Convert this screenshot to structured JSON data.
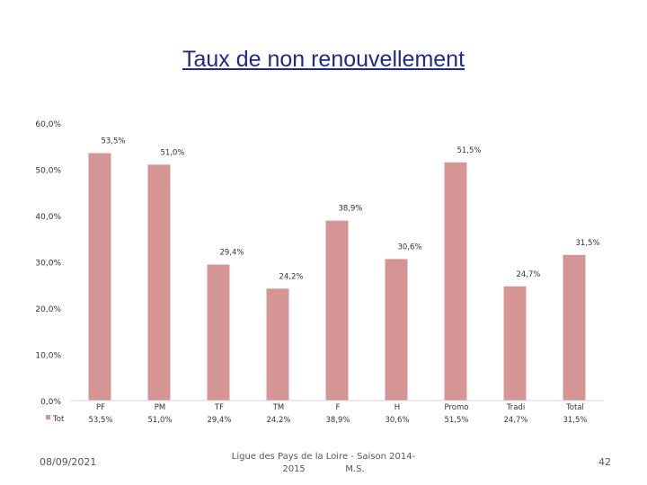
{
  "slide": {
    "title": "Taux de non renouvellement",
    "date": "08/09/2021",
    "footer_line1": "Ligue des Pays de la Loire - Saison 2014-",
    "footer_line2": "2015              M.S.",
    "page_number": "42"
  },
  "chart_data": {
    "type": "bar",
    "title": "",
    "xlabel": "",
    "ylabel": "",
    "ylim": [
      0,
      60
    ],
    "ytick_labels": [
      "0,0%",
      "10,0%",
      "20,0%",
      "30,0%",
      "40,0%",
      "50,0%",
      "60,0%"
    ],
    "yticks": [
      0,
      10,
      20,
      30,
      40,
      50,
      60
    ],
    "categories": [
      "PF",
      "PM",
      "TF",
      "TM",
      "F",
      "H",
      "Promo",
      "Tradi",
      "Total"
    ],
    "series": [
      {
        "name": "Tot",
        "values": [
          53.5,
          51.0,
          29.4,
          24.2,
          38.9,
          30.6,
          51.5,
          24.7,
          31.5
        ],
        "labels": [
          "53,5%",
          "51,0%",
          "29,4%",
          "24,2%",
          "38,9%",
          "30,6%",
          "51,5%",
          "24,7%",
          "31,5%"
        ],
        "color": "#d49594"
      }
    ],
    "grid": false,
    "legend": "data-table"
  }
}
